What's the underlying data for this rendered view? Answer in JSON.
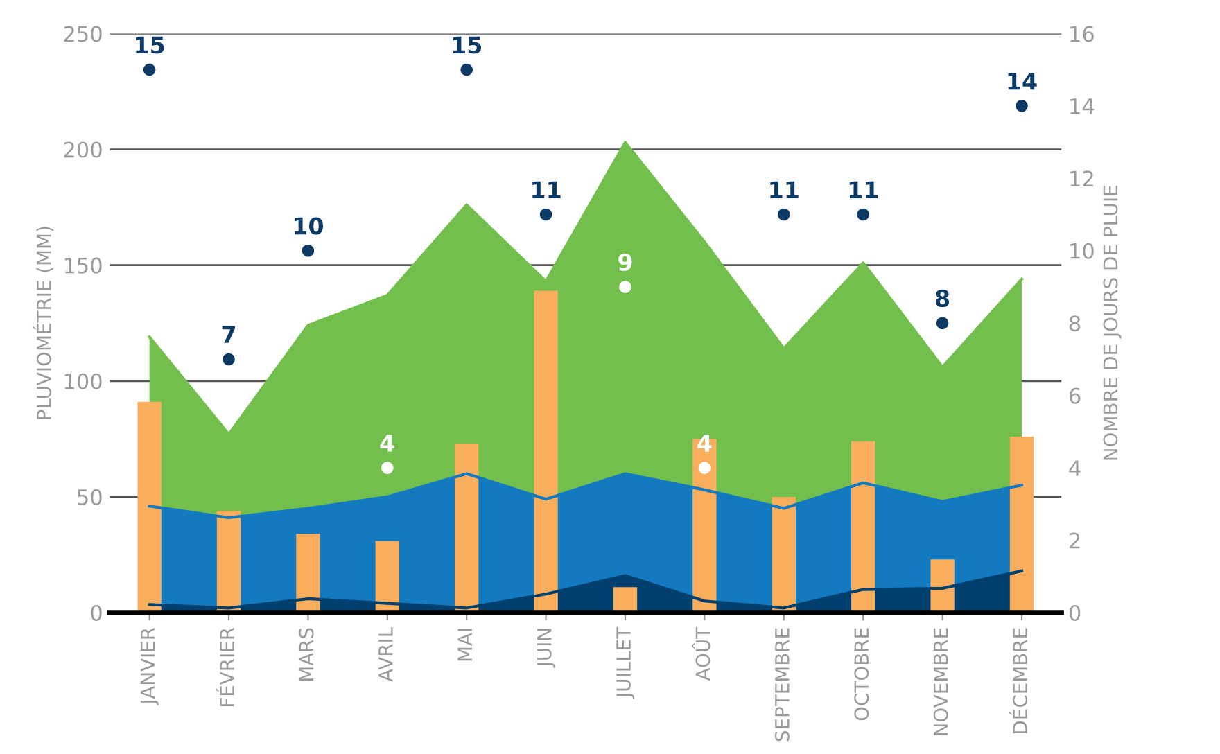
{
  "chart_data": {
    "type": "area",
    "ylabel": "PLUVIOMÉTRIE (MM)",
    "y2label": "NOMBRE DE JOURS DE PLUIE",
    "categories": [
      "JANVIER",
      "FÉVRIER",
      "MARS",
      "AVRIL",
      "MAI",
      "JUIN",
      "JUILLET",
      "AOÛT",
      "SEPTEMBRE",
      "OCTOBRE",
      "NOVEMBRE",
      "DÉCEMBRE"
    ],
    "series": [
      {
        "color": "#72bf4e",
        "values": [
          119,
          77,
          124,
          137,
          176,
          143,
          203,
          160,
          114,
          151,
          106,
          144
        ]
      },
      {
        "color": "#137abf",
        "values": [
          46,
          41,
          45,
          50,
          60,
          49,
          60,
          53,
          45,
          56,
          48,
          55
        ]
      },
      {
        "color": "#003f6e",
        "values": [
          3.5,
          2,
          6,
          4,
          2,
          8,
          16,
          5,
          2,
          10,
          10.5,
          18
        ]
      },
      {
        "type": "bar",
        "color": "#f9ae5d",
        "values": [
          91,
          44,
          34,
          31,
          73,
          139,
          11,
          75,
          50,
          74,
          23,
          76
        ]
      },
      {
        "type": "scatter",
        "axis": "y2",
        "marker": "circle",
        "colors": [
          "#0d3b66",
          "#0d3b66",
          "#0d3b66",
          "#ffffff",
          "#0d3b66",
          "#0d3b66",
          "#ffffff",
          "#ffffff",
          "#0d3b66",
          "#0d3b66",
          "#0d3b66",
          "#0d3b66"
        ],
        "values": [
          15,
          7,
          10,
          4,
          15,
          11,
          9,
          4,
          11,
          11,
          8,
          14
        ],
        "value_labels": [
          "15",
          "7",
          "10",
          "4",
          "15",
          "11",
          "9",
          "4",
          "11",
          "11",
          "8",
          "14"
        ]
      }
    ],
    "ylim": [
      0,
      250
    ],
    "yticks": [
      0,
      50,
      100,
      150,
      200,
      250
    ],
    "y2lim": [
      0,
      16
    ],
    "y2ticks": [
      0,
      2,
      4,
      6,
      8,
      10,
      12,
      14,
      16
    ],
    "grid": "y",
    "legend": false
  }
}
